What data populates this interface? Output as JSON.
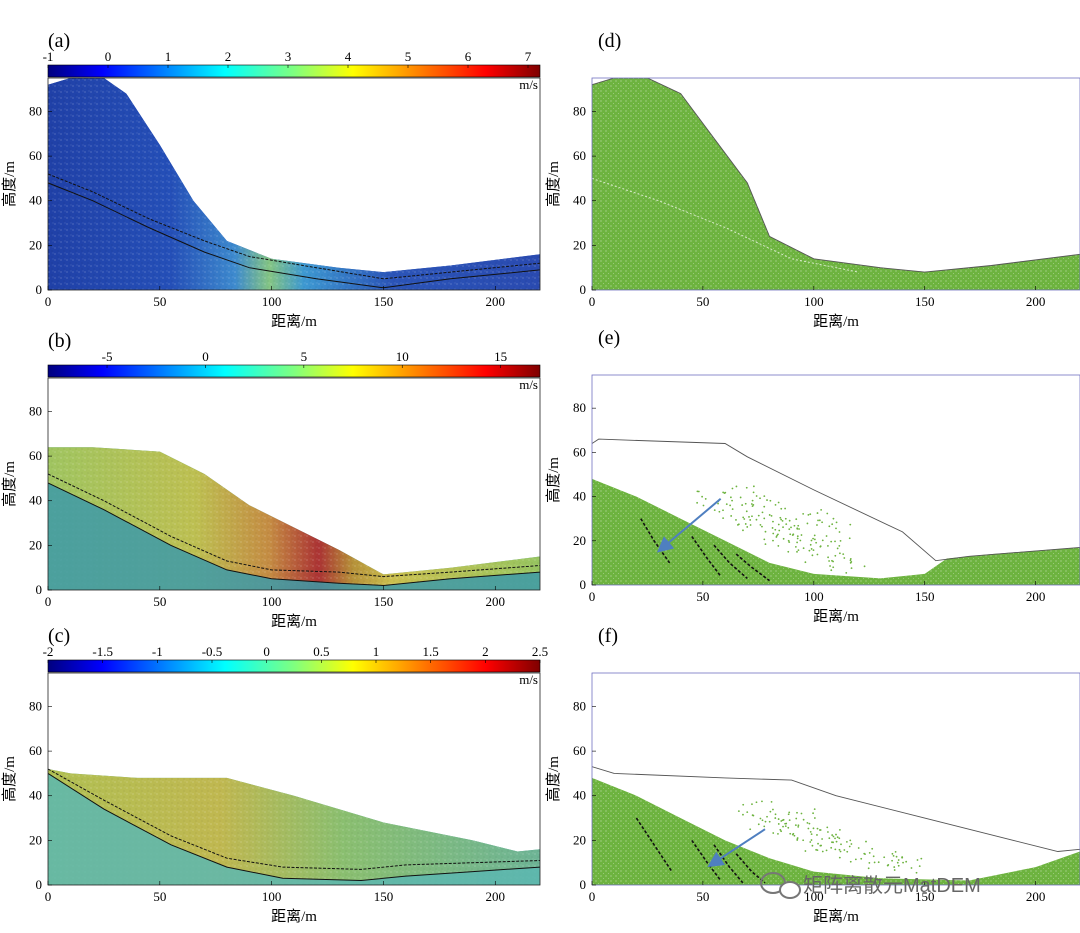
{
  "figure": {
    "watermark": "矩阵离散元MatDEM",
    "watermark_icon": "wechat-bubble-icon"
  },
  "chart_data": [
    {
      "id": "a",
      "label": "(a)",
      "type": "heatmap",
      "xlabel": "距离/m",
      "ylabel": "高度/m",
      "xlim": [
        0,
        220
      ],
      "ylim": [
        0,
        95
      ],
      "xticks": [
        "0",
        "50",
        "100",
        "150",
        "200"
      ],
      "yticks": [
        "0",
        "20",
        "40",
        "60",
        "80"
      ],
      "colorbar": {
        "ticks": [
          "-1",
          "0",
          "1",
          "2",
          "3",
          "4",
          "5",
          "6",
          "7"
        ],
        "tick_values": [
          -1,
          0,
          1,
          2,
          3,
          4,
          5,
          6,
          7
        ],
        "range": [
          -1,
          7.2
        ],
        "unit": "m/s",
        "colormap": "jet"
      },
      "surface": [
        [
          0,
          92
        ],
        [
          10,
          95
        ],
        [
          25,
          95
        ],
        [
          35,
          88
        ],
        [
          50,
          65
        ],
        [
          65,
          40
        ],
        [
          80,
          22
        ],
        [
          100,
          14
        ],
        [
          130,
          10
        ],
        [
          150,
          8
        ],
        [
          180,
          11
        ],
        [
          220,
          16
        ]
      ],
      "value_color": "blue-dominant with cyan/yellow band along slope face (≈0 to 3 m/s)",
      "slip_lines": [
        [
          [
            0,
            52
          ],
          [
            20,
            44
          ],
          [
            45,
            32
          ],
          [
            70,
            22
          ],
          [
            90,
            15
          ],
          [
            120,
            10
          ],
          [
            150,
            5
          ],
          [
            180,
            8
          ],
          [
            220,
            12
          ]
        ],
        [
          [
            0,
            48
          ],
          [
            20,
            40
          ],
          [
            45,
            28
          ],
          [
            70,
            17
          ],
          [
            90,
            10
          ],
          [
            120,
            5
          ],
          [
            150,
            1
          ],
          [
            180,
            5
          ],
          [
            220,
            9
          ]
        ]
      ]
    },
    {
      "id": "b",
      "label": "(b)",
      "type": "heatmap",
      "xlabel": "距离/m",
      "ylabel": "高度/m",
      "xlim": [
        0,
        220
      ],
      "ylim": [
        0,
        95
      ],
      "xticks": [
        "0",
        "50",
        "100",
        "150",
        "200"
      ],
      "yticks": [
        "0",
        "20",
        "40",
        "60",
        "80"
      ],
      "colorbar": {
        "ticks": [
          "-5",
          "0",
          "5",
          "10",
          "15"
        ],
        "tick_values": [
          -5,
          0,
          5,
          10,
          15
        ],
        "range": [
          -8,
          17
        ],
        "unit": "m/s",
        "colormap": "jet"
      },
      "surface": [
        [
          0,
          64
        ],
        [
          20,
          64
        ],
        [
          50,
          62
        ],
        [
          70,
          52
        ],
        [
          90,
          38
        ],
        [
          110,
          28
        ],
        [
          130,
          18
        ],
        [
          150,
          7
        ],
        [
          180,
          10
        ],
        [
          220,
          15
        ]
      ],
      "value_color": "yellow-orange sliding mass, red (≈15 m/s) at upper-right front, teal stable base",
      "slip_lines": [
        [
          [
            0,
            52
          ],
          [
            25,
            40
          ],
          [
            55,
            24
          ],
          [
            80,
            13
          ],
          [
            100,
            9
          ],
          [
            130,
            8
          ],
          [
            150,
            6
          ],
          [
            180,
            8
          ],
          [
            220,
            11
          ]
        ],
        [
          [
            0,
            48
          ],
          [
            25,
            36
          ],
          [
            55,
            20
          ],
          [
            80,
            9
          ],
          [
            100,
            5
          ],
          [
            130,
            3
          ],
          [
            150,
            2
          ],
          [
            180,
            5
          ],
          [
            220,
            8
          ]
        ]
      ]
    },
    {
      "id": "c",
      "label": "(c)",
      "type": "heatmap",
      "xlabel": "距离/m",
      "ylabel": "高度/m",
      "xlim": [
        0,
        220
      ],
      "ylim": [
        0,
        95
      ],
      "xticks": [
        "0",
        "50",
        "100",
        "150",
        "200"
      ],
      "yticks": [
        "0",
        "20",
        "40",
        "60",
        "80"
      ],
      "colorbar": {
        "ticks": [
          "-2",
          "-1.5",
          "-1",
          "-0.5",
          "0",
          "0.5",
          "1",
          "1.5",
          "2",
          "2.5"
        ],
        "tick_values": [
          -2,
          -1.5,
          -1,
          -0.5,
          0,
          0.5,
          1,
          1.5,
          2,
          2.5
        ],
        "range": [
          -2,
          2.5
        ],
        "unit": "m/s",
        "colormap": "jet"
      },
      "surface": [
        [
          0,
          52
        ],
        [
          10,
          50
        ],
        [
          40,
          48
        ],
        [
          80,
          48
        ],
        [
          110,
          40
        ],
        [
          150,
          28
        ],
        [
          190,
          20
        ],
        [
          210,
          15
        ],
        [
          220,
          16
        ]
      ],
      "value_color": "green-yellow deposited mass, cyan-green base",
      "slip_lines": [
        [
          [
            0,
            52
          ],
          [
            25,
            38
          ],
          [
            55,
            22
          ],
          [
            80,
            12
          ],
          [
            105,
            8
          ],
          [
            140,
            7
          ],
          [
            160,
            9
          ],
          [
            190,
            10
          ],
          [
            220,
            11
          ]
        ],
        [
          [
            0,
            50
          ],
          [
            25,
            34
          ],
          [
            55,
            18
          ],
          [
            80,
            8
          ],
          [
            105,
            3
          ],
          [
            140,
            2
          ],
          [
            160,
            4
          ],
          [
            190,
            6
          ],
          [
            220,
            8
          ]
        ]
      ]
    },
    {
      "id": "d",
      "label": "(d)",
      "type": "scatter",
      "xlabel": "距离/m",
      "ylabel": "高度/m",
      "xlim": [
        0,
        220
      ],
      "ylim": [
        0,
        95
      ],
      "xticks": [
        "0",
        "50",
        "100",
        "150",
        "200"
      ],
      "yticks": [
        "0",
        "20",
        "40",
        "60",
        "80"
      ],
      "surface": [
        [
          0,
          92
        ],
        [
          10,
          95
        ],
        [
          25,
          95
        ],
        [
          40,
          88
        ],
        [
          55,
          68
        ],
        [
          70,
          48
        ],
        [
          80,
          24
        ],
        [
          100,
          14
        ],
        [
          130,
          10
        ],
        [
          150,
          8
        ],
        [
          180,
          11
        ],
        [
          220,
          16
        ]
      ],
      "outline": [
        [
          0,
          92
        ],
        [
          10,
          95
        ],
        [
          25,
          95
        ],
        [
          40,
          88
        ],
        [
          55,
          68
        ],
        [
          70,
          48
        ],
        [
          80,
          24
        ],
        [
          100,
          14
        ],
        [
          130,
          10
        ],
        [
          150,
          8
        ],
        [
          180,
          11
        ],
        [
          220,
          16
        ]
      ],
      "fill_color": "#6db33f",
      "arrow": null,
      "cracks": []
    },
    {
      "id": "e",
      "label": "(e)",
      "type": "scatter",
      "xlabel": "距离/m",
      "ylabel": "高度/m",
      "xlim": [
        0,
        220
      ],
      "ylim": [
        0,
        95
      ],
      "xticks": [
        "0",
        "50",
        "100",
        "150",
        "200"
      ],
      "yticks": [
        "0",
        "20",
        "40",
        "60",
        "80"
      ],
      "surface": [
        [
          0,
          48
        ],
        [
          20,
          40
        ],
        [
          40,
          30
        ],
        [
          60,
          20
        ],
        [
          80,
          10
        ],
        [
          100,
          5
        ],
        [
          130,
          3
        ],
        [
          150,
          5
        ],
        [
          160,
          12
        ],
        [
          180,
          14
        ],
        [
          220,
          17
        ]
      ],
      "outline": [
        [
          0,
          64
        ],
        [
          3,
          66
        ],
        [
          60,
          64
        ],
        [
          70,
          58
        ],
        [
          100,
          43
        ],
        [
          140,
          24
        ],
        [
          155,
          11
        ],
        [
          170,
          13
        ],
        [
          220,
          17
        ]
      ],
      "debris": [
        [
          55,
          38
        ],
        [
          65,
          32
        ],
        [
          75,
          28
        ],
        [
          85,
          22
        ],
        [
          95,
          18
        ],
        [
          105,
          14
        ],
        [
          110,
          24
        ],
        [
          100,
          30
        ],
        [
          80,
          34
        ],
        [
          70,
          40
        ],
        [
          115,
          10
        ],
        [
          90,
          25
        ]
      ],
      "fill_color": "#6db33f",
      "arrow": {
        "from": [
          58,
          39
        ],
        "to": [
          32,
          17
        ]
      },
      "cracks": [
        [
          [
            22,
            30
          ],
          [
            28,
            20
          ],
          [
            35,
            10
          ]
        ],
        [
          [
            45,
            22
          ],
          [
            52,
            12
          ],
          [
            58,
            4
          ]
        ],
        [
          [
            55,
            18
          ],
          [
            62,
            10
          ],
          [
            70,
            3
          ]
        ],
        [
          [
            65,
            14
          ],
          [
            72,
            8
          ],
          [
            80,
            2
          ]
        ]
      ]
    },
    {
      "id": "f",
      "label": "(f)",
      "type": "scatter",
      "xlabel": "距离/m",
      "ylabel": "高度/m",
      "xlim": [
        0,
        220
      ],
      "ylim": [
        0,
        95
      ],
      "xticks": [
        "0",
        "50",
        "100",
        "150",
        "200"
      ],
      "yticks": [
        "0",
        "20",
        "40",
        "60",
        "80"
      ],
      "surface": [
        [
          0,
          48
        ],
        [
          20,
          40
        ],
        [
          40,
          30
        ],
        [
          60,
          20
        ],
        [
          80,
          12
        ],
        [
          100,
          6
        ],
        [
          130,
          3
        ],
        [
          170,
          2
        ],
        [
          200,
          8
        ],
        [
          220,
          15
        ]
      ],
      "outline": [
        [
          0,
          53
        ],
        [
          10,
          50
        ],
        [
          60,
          48
        ],
        [
          90,
          47
        ],
        [
          110,
          40
        ],
        [
          150,
          30
        ],
        [
          190,
          20
        ],
        [
          210,
          15
        ],
        [
          220,
          16
        ]
      ],
      "debris": [
        [
          75,
          33
        ],
        [
          80,
          28
        ],
        [
          90,
          25
        ],
        [
          100,
          22
        ],
        [
          110,
          18
        ],
        [
          120,
          15
        ],
        [
          130,
          12
        ],
        [
          140,
          10
        ],
        [
          95,
          30
        ],
        [
          105,
          20
        ]
      ],
      "fill_color": "#6db33f",
      "arrow": {
        "from": [
          78,
          25
        ],
        "to": [
          55,
          10
        ]
      },
      "cracks": [
        [
          [
            20,
            30
          ],
          [
            28,
            18
          ],
          [
            36,
            6
          ]
        ],
        [
          [
            45,
            20
          ],
          [
            52,
            10
          ],
          [
            58,
            2
          ]
        ],
        [
          [
            55,
            18
          ],
          [
            62,
            8
          ],
          [
            68,
            1
          ]
        ],
        [
          [
            65,
            14
          ],
          [
            72,
            6
          ],
          [
            78,
            1
          ]
        ]
      ]
    }
  ]
}
